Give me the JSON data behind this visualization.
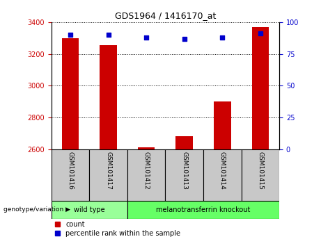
{
  "title": "GDS1964 / 1416170_at",
  "samples": [
    "GSM101416",
    "GSM101417",
    "GSM101412",
    "GSM101413",
    "GSM101414",
    "GSM101415"
  ],
  "counts": [
    3300,
    3255,
    2610,
    2680,
    2900,
    3370
  ],
  "percentile_ranks": [
    90,
    90,
    88,
    87,
    88,
    91
  ],
  "ylim_left": [
    2600,
    3400
  ],
  "ylim_right": [
    0,
    100
  ],
  "yticks_left": [
    2600,
    2800,
    3000,
    3200,
    3400
  ],
  "yticks_right": [
    0,
    25,
    50,
    75,
    100
  ],
  "bar_color": "#cc0000",
  "dot_color": "#0000cc",
  "groups": [
    {
      "label": "wild type",
      "indices": [
        0,
        1
      ],
      "color": "#99ff99"
    },
    {
      "label": "melanotransferrin knockout",
      "indices": [
        2,
        3,
        4,
        5
      ],
      "color": "#66ff66"
    }
  ],
  "group_row_label": "genotype/variation",
  "legend_count_label": "count",
  "legend_pct_label": "percentile rank within the sample",
  "bar_width": 0.45,
  "bg_color": "#ffffff",
  "plot_bg": "#ffffff",
  "tick_color_left": "#cc0000",
  "tick_color_right": "#0000cc",
  "sample_cell_color": "#c8c8c8"
}
